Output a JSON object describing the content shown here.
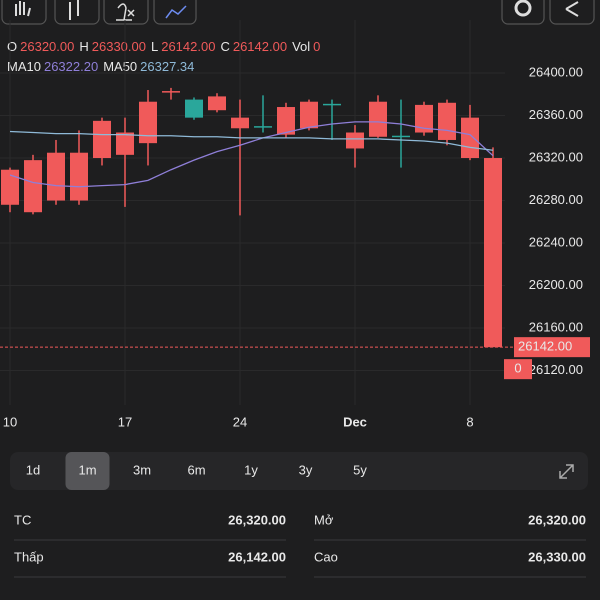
{
  "chart_data": {
    "type": "candlestick",
    "ohlc_header": [
      {
        "label": "O",
        "value": "26320.00"
      },
      {
        "label": "H",
        "value": "26330.00"
      },
      {
        "label": "L",
        "value": "26142.00"
      },
      {
        "label": "C",
        "value": "26142.00"
      },
      {
        "label": "Vol",
        "value": "0"
      }
    ],
    "categories": [
      "10",
      null,
      null,
      null,
      null,
      "17",
      null,
      null,
      null,
      null,
      "24",
      null,
      null,
      null,
      null,
      "Dec",
      null,
      null,
      null,
      null,
      "8",
      null
    ],
    "open": [
      26309,
      26318,
      26325,
      26325,
      26355,
      26344,
      26373,
      26383,
      26358,
      26378,
      26358,
      26349,
      26368,
      26373,
      26370,
      26344,
      26373,
      26340,
      26370,
      26372,
      26358,
      26320
    ],
    "high": [
      26311,
      26323,
      26337,
      26346,
      26358,
      26358,
      26384,
      26386,
      26377,
      26381,
      26375,
      26379,
      26372,
      26375,
      26375,
      26351,
      26379,
      26375,
      26373,
      26375,
      26370,
      26330
    ],
    "low": [
      26269,
      26267,
      26276,
      26276,
      26313,
      26274,
      26313,
      26375,
      26356,
      26363,
      26266,
      26344,
      26339,
      26346,
      26337,
      26311,
      26339,
      26311,
      26341,
      26332,
      26318,
      26142
    ],
    "close": [
      26276,
      26269,
      26280,
      26280,
      26320,
      26323,
      26334,
      26382,
      26375,
      26365,
      26348,
      26350,
      26342,
      26348,
      26371,
      26329,
      26340,
      26341,
      26344,
      26337,
      26320,
      26142
    ],
    "up_color": "#2aa79b",
    "down_color": "#f05a5a",
    "ma": [
      {
        "name": "MA10",
        "color": "#8f7fd8",
        "value_label": "26322.20",
        "values": [
          26304,
          26297,
          26294,
          26293,
          26294,
          26295,
          26299,
          26309,
          26318,
          26326,
          26332,
          26339,
          26344,
          26349,
          26352,
          26354,
          26354,
          26352,
          26348,
          26346,
          26342,
          26322.2
        ]
      },
      {
        "name": "MA50",
        "color": "#8fbad8",
        "value_label": "26327.34",
        "values": [
          26345,
          26344,
          26343,
          26343,
          26342,
          26342,
          26341,
          26341,
          26340,
          26340,
          26339,
          26339,
          26339,
          26339,
          26338,
          26338,
          26338,
          26337,
          26336,
          26334,
          26330,
          26327.34
        ]
      }
    ],
    "ylim": [
      26090,
      26410
    ],
    "yticks": [
      {
        "value": 26400,
        "label": "26400.00"
      },
      {
        "value": 26360,
        "label": "26360.00"
      },
      {
        "value": 26320,
        "label": "26320.00"
      },
      {
        "value": 26280,
        "label": "26280.00"
      },
      {
        "value": 26240,
        "label": "26240.00"
      },
      {
        "value": 26200,
        "label": "26200.00"
      },
      {
        "value": 26160,
        "label": "26160.00"
      },
      {
        "value": 26120,
        "label": "26120.00"
      }
    ],
    "grid": true,
    "last_price": 26142,
    "last_price_label": "26142.00",
    "volume_label": "0"
  },
  "periods": {
    "items": [
      "1d",
      "1m",
      "3m",
      "6m",
      "1y",
      "3y",
      "5y"
    ],
    "selected": 1
  },
  "stats": [
    {
      "label": "TC",
      "value": "26,320.00",
      "color": "#f0c53c"
    },
    {
      "label": "Mở",
      "value": "26,320.00",
      "color": "#f0c53c"
    },
    {
      "label": "Thấp",
      "value": "26,142.00",
      "color": "#e53935"
    },
    {
      "label": "Cao",
      "value": "26,330.00",
      "color": "#2fbf3a"
    }
  ]
}
